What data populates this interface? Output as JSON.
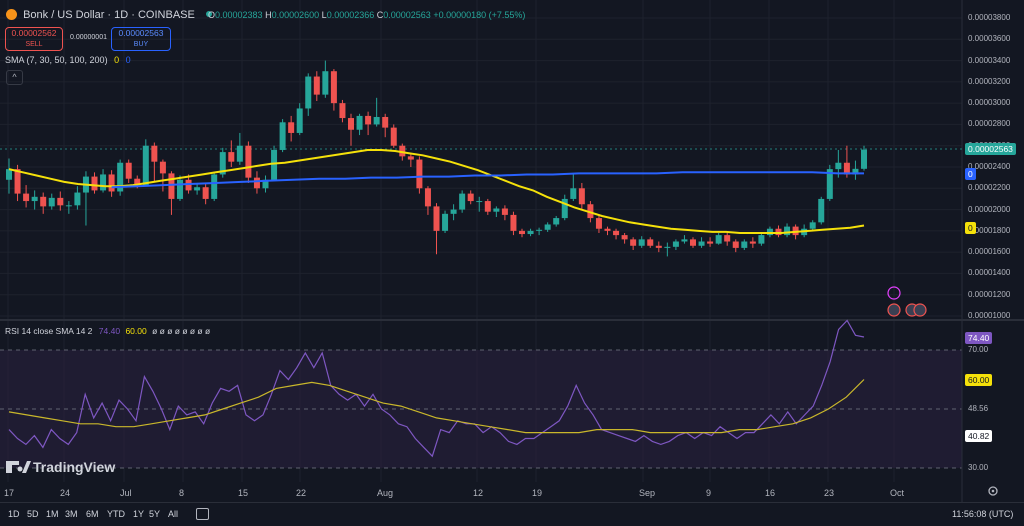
{
  "header": {
    "symbol_title": "Bonk / US Dollar · 1D · COINBASE",
    "ohlc": [
      {
        "k": "O",
        "v": "0.00002383"
      },
      {
        "k": "H",
        "v": "0.00002600"
      },
      {
        "k": "L",
        "v": "0.00002366"
      },
      {
        "k": "C",
        "v": "0.00002563"
      },
      {
        "k": "",
        "v": "+0.00000180 (+7.55%)"
      }
    ],
    "sell_price": "0.00002562",
    "sell_label": "SELL",
    "spread": "0.00000001",
    "buy_price": "0.00002563",
    "buy_label": "BUY",
    "sma_label": "SMA (7, 30, 50, 100, 200)",
    "sma_values": [
      "0",
      "0"
    ],
    "rsi_label": "RSI 14 close SMA 14 2",
    "rsi_value": "74.40",
    "rsi_sma_value": "60.00",
    "rsi_extra": "ø ø ø ø ø ø ø ø"
  },
  "price_axis": {
    "ticks": [
      "0.00003800",
      "0.00003600",
      "0.00003400",
      "0.00003200",
      "0.00003000",
      "0.00002800",
      "0.00002600",
      "0.00002400",
      "0.00002200",
      "0.00002000",
      "0.00001800",
      "0.00001600",
      "0.00001400",
      "0.00001200",
      "0.00001000"
    ],
    "last_price_tag": "0.00002563",
    "sma_tag_blue": "0",
    "sma_tag_yellow": "0"
  },
  "rsi_axis": {
    "ticks": [
      "70.00",
      "48.56",
      "30.00"
    ],
    "rsi_tag": "74.40",
    "rsi_sma_tag": "60.00",
    "level_tag": "40.82"
  },
  "time_axis": [
    "17",
    "24",
    "Jul",
    "8",
    "15",
    "22",
    "Aug",
    "12",
    "19",
    "Sep",
    "9",
    "16",
    "23",
    "Oct"
  ],
  "timeframes": [
    "1D",
    "5D",
    "1M",
    "3M",
    "6M",
    "YTD",
    "1Y",
    "5Y",
    "All"
  ],
  "clock": "11:56:08 (UTC)",
  "watermark": "TradingView",
  "colors": {
    "background": "#131722",
    "up": "#26a69a",
    "down": "#ef5350",
    "sma_yellow": "#f5e10a",
    "sma_blue": "#2962ff",
    "rsi_line": "#7e57c2",
    "rsi_sma": "#c9b72b",
    "rsi_band": "#2a2140"
  },
  "chart_data": {
    "type": "candlestick",
    "symbol": "Bonk / US Dollar",
    "interval": "1D",
    "x_range": [
      "Jun 17",
      "Oct 1"
    ],
    "ylim": [
      1e-05,
      3.8e-05
    ],
    "candles": [
      {
        "o": 2.28e-05,
        "c": 2.38e-05,
        "h": 2.48e-05,
        "l": 2.15e-05
      },
      {
        "o": 2.38e-05,
        "c": 2.15e-05,
        "h": 2.42e-05,
        "l": 2.08e-05
      },
      {
        "o": 2.15e-05,
        "c": 2.08e-05,
        "h": 2.23e-05,
        "l": 2.02e-05
      },
      {
        "o": 2.08e-05,
        "c": 2.12e-05,
        "h": 2.18e-05,
        "l": 2e-05
      },
      {
        "o": 2.12e-05,
        "c": 2.03e-05,
        "h": 2.16e-05,
        "l": 1.96e-05
      },
      {
        "o": 2.03e-05,
        "c": 2.11e-05,
        "h": 2.15e-05,
        "l": 2e-05
      },
      {
        "o": 2.11e-05,
        "c": 2.04e-05,
        "h": 2.17e-05,
        "l": 1.99e-05
      },
      {
        "o": 2.04e-05,
        "c": 2.04e-05,
        "h": 2.08e-05,
        "l": 1.96e-05
      },
      {
        "o": 2.04e-05,
        "c": 2.16e-05,
        "h": 2.22e-05,
        "l": 2e-05
      },
      {
        "o": 2.16e-05,
        "c": 2.31e-05,
        "h": 2.36e-05,
        "l": 1.85e-05
      },
      {
        "o": 2.31e-05,
        "c": 2.18e-05,
        "h": 2.35e-05,
        "l": 2.15e-05
      },
      {
        "o": 2.18e-05,
        "c": 2.33e-05,
        "h": 2.38e-05,
        "l": 2.16e-05
      },
      {
        "o": 2.33e-05,
        "c": 2.17e-05,
        "h": 2.37e-05,
        "l": 2.12e-05
      },
      {
        "o": 2.17e-05,
        "c": 2.44e-05,
        "h": 2.47e-05,
        "l": 2.13e-05
      },
      {
        "o": 2.44e-05,
        "c": 2.29e-05,
        "h": 2.47e-05,
        "l": 2.25e-05
      },
      {
        "o": 2.29e-05,
        "c": 2.23e-05,
        "h": 2.32e-05,
        "l": 2.2e-05
      },
      {
        "o": 2.23e-05,
        "c": 2.6e-05,
        "h": 2.66e-05,
        "l": 2.22e-05
      },
      {
        "o": 2.6e-05,
        "c": 2.45e-05,
        "h": 2.63e-05,
        "l": 2.26e-05
      },
      {
        "o": 2.45e-05,
        "c": 2.34e-05,
        "h": 2.47e-05,
        "l": 2.17e-05
      },
      {
        "o": 2.34e-05,
        "c": 2.1e-05,
        "h": 2.36e-05,
        "l": 1.95e-05
      },
      {
        "o": 2.1e-05,
        "c": 2.28e-05,
        "h": 2.32e-05,
        "l": 2.08e-05
      },
      {
        "o": 2.28e-05,
        "c": 2.18e-05,
        "h": 2.33e-05,
        "l": 2.15e-05
      },
      {
        "o": 2.18e-05,
        "c": 2.21e-05,
        "h": 2.25e-05,
        "l": 2.14e-05
      },
      {
        "o": 2.21e-05,
        "c": 2.1e-05,
        "h": 2.24e-05,
        "l": 2.05e-05
      },
      {
        "o": 2.1e-05,
        "c": 2.33e-05,
        "h": 2.35e-05,
        "l": 2.08e-05
      },
      {
        "o": 2.33e-05,
        "c": 2.54e-05,
        "h": 2.58e-05,
        "l": 2.3e-05
      },
      {
        "o": 2.54e-05,
        "c": 2.45e-05,
        "h": 2.65e-05,
        "l": 2.4e-05
      },
      {
        "o": 2.45e-05,
        "c": 2.6e-05,
        "h": 2.72e-05,
        "l": 2.42e-05
      },
      {
        "o": 2.6e-05,
        "c": 2.3e-05,
        "h": 2.64e-05,
        "l": 2.25e-05
      },
      {
        "o": 2.3e-05,
        "c": 2.2e-05,
        "h": 2.36e-05,
        "l": 2.15e-05
      },
      {
        "o": 2.2e-05,
        "c": 2.28e-05,
        "h": 2.32e-05,
        "l": 2.16e-05
      },
      {
        "o": 2.28e-05,
        "c": 2.56e-05,
        "h": 2.6e-05,
        "l": 2.27e-05
      },
      {
        "o": 2.56e-05,
        "c": 2.82e-05,
        "h": 2.85e-05,
        "l": 2.54e-05
      },
      {
        "o": 2.82e-05,
        "c": 2.72e-05,
        "h": 2.88e-05,
        "l": 2.64e-05
      },
      {
        "o": 2.72e-05,
        "c": 2.95e-05,
        "h": 3e-05,
        "l": 2.7e-05
      },
      {
        "o": 2.95e-05,
        "c": 3.25e-05,
        "h": 3.28e-05,
        "l": 2.88e-05
      },
      {
        "o": 3.25e-05,
        "c": 3.08e-05,
        "h": 3.3e-05,
        "l": 3.02e-05
      },
      {
        "o": 3.08e-05,
        "c": 3.3e-05,
        "h": 3.4e-05,
        "l": 3.05e-05
      },
      {
        "o": 3.3e-05,
        "c": 3e-05,
        "h": 3.32e-05,
        "l": 2.93e-05
      },
      {
        "o": 3e-05,
        "c": 2.86e-05,
        "h": 3.03e-05,
        "l": 2.82e-05
      },
      {
        "o": 2.86e-05,
        "c": 2.75e-05,
        "h": 2.9e-05,
        "l": 2.6e-05
      },
      {
        "o": 2.75e-05,
        "c": 2.88e-05,
        "h": 2.9e-05,
        "l": 2.7e-05
      },
      {
        "o": 2.88e-05,
        "c": 2.8e-05,
        "h": 2.92e-05,
        "l": 2.7e-05
      },
      {
        "o": 2.8e-05,
        "c": 2.87e-05,
        "h": 3.05e-05,
        "l": 2.78e-05
      },
      {
        "o": 2.87e-05,
        "c": 2.77e-05,
        "h": 2.9e-05,
        "l": 2.68e-05
      },
      {
        "o": 2.77e-05,
        "c": 2.6e-05,
        "h": 2.8e-05,
        "l": 2.58e-05
      },
      {
        "o": 2.6e-05,
        "c": 2.5e-05,
        "h": 2.62e-05,
        "l": 2.46e-05
      },
      {
        "o": 2.5e-05,
        "c": 2.47e-05,
        "h": 2.52e-05,
        "l": 2.4e-05
      },
      {
        "o": 2.47e-05,
        "c": 2.2e-05,
        "h": 2.5e-05,
        "l": 2.15e-05
      },
      {
        "o": 2.2e-05,
        "c": 2.03e-05,
        "h": 2.22e-05,
        "l": 1.95e-05
      },
      {
        "o": 2.03e-05,
        "c": 1.8e-05,
        "h": 2.06e-05,
        "l": 1.58e-05
      },
      {
        "o": 1.8e-05,
        "c": 1.96e-05,
        "h": 1.99e-05,
        "l": 1.78e-05
      },
      {
        "o": 1.96e-05,
        "c": 2e-05,
        "h": 2.05e-05,
        "l": 1.9e-05
      },
      {
        "o": 2e-05,
        "c": 2.15e-05,
        "h": 2.18e-05,
        "l": 1.97e-05
      },
      {
        "o": 2.15e-05,
        "c": 2.08e-05,
        "h": 2.18e-05,
        "l": 2.05e-05
      },
      {
        "o": 2.08e-05,
        "c": 2.08e-05,
        "h": 2.12e-05,
        "l": 1.98e-05
      },
      {
        "o": 2.08e-05,
        "c": 1.98e-05,
        "h": 2.1e-05,
        "l": 1.95e-05
      },
      {
        "o": 1.98e-05,
        "c": 2.01e-05,
        "h": 2.03e-05,
        "l": 1.93e-05
      },
      {
        "o": 2.01e-05,
        "c": 1.95e-05,
        "h": 2.04e-05,
        "l": 1.9e-05
      },
      {
        "o": 1.95e-05,
        "c": 1.8e-05,
        "h": 1.98e-05,
        "l": 1.76e-05
      },
      {
        "o": 1.8e-05,
        "c": 1.77e-05,
        "h": 1.82e-05,
        "l": 1.74e-05
      },
      {
        "o": 1.77e-05,
        "c": 1.8e-05,
        "h": 1.82e-05,
        "l": 1.75e-05
      },
      {
        "o": 1.8e-05,
        "c": 1.81e-05,
        "h": 1.83e-05,
        "l": 1.76e-05
      },
      {
        "o": 1.81e-05,
        "c": 1.86e-05,
        "h": 1.88e-05,
        "l": 1.79e-05
      },
      {
        "o": 1.86e-05,
        "c": 1.92e-05,
        "h": 1.94e-05,
        "l": 1.84e-05
      },
      {
        "o": 1.92e-05,
        "c": 2.1e-05,
        "h": 2.14e-05,
        "l": 1.9e-05
      },
      {
        "o": 2.1e-05,
        "c": 2.2e-05,
        "h": 2.34e-05,
        "l": 2.08e-05
      },
      {
        "o": 2.2e-05,
        "c": 2.05e-05,
        "h": 2.25e-05,
        "l": 2e-05
      },
      {
        "o": 2.05e-05,
        "c": 1.92e-05,
        "h": 2.08e-05,
        "l": 1.88e-05
      },
      {
        "o": 1.92e-05,
        "c": 1.82e-05,
        "h": 1.95e-05,
        "l": 1.78e-05
      },
      {
        "o": 1.82e-05,
        "c": 1.8e-05,
        "h": 1.84e-05,
        "l": 1.76e-05
      },
      {
        "o": 1.8e-05,
        "c": 1.76e-05,
        "h": 1.82e-05,
        "l": 1.72e-05
      },
      {
        "o": 1.76e-05,
        "c": 1.72e-05,
        "h": 1.78e-05,
        "l": 1.68e-05
      },
      {
        "o": 1.72e-05,
        "c": 1.66e-05,
        "h": 1.74e-05,
        "l": 1.62e-05
      },
      {
        "o": 1.66e-05,
        "c": 1.72e-05,
        "h": 1.75e-05,
        "l": 1.64e-05
      },
      {
        "o": 1.72e-05,
        "c": 1.66e-05,
        "h": 1.74e-05,
        "l": 1.64e-05
      },
      {
        "o": 1.66e-05,
        "c": 1.64e-05,
        "h": 1.7e-05,
        "l": 1.6e-05
      },
      {
        "o": 1.64e-05,
        "c": 1.65e-05,
        "h": 1.69e-05,
        "l": 1.56e-05
      },
      {
        "o": 1.65e-05,
        "c": 1.7e-05,
        "h": 1.72e-05,
        "l": 1.62e-05
      },
      {
        "o": 1.7e-05,
        "c": 1.72e-05,
        "h": 1.76e-05,
        "l": 1.68e-05
      },
      {
        "o": 1.72e-05,
        "c": 1.66e-05,
        "h": 1.74e-05,
        "l": 1.64e-05
      },
      {
        "o": 1.66e-05,
        "c": 1.7e-05,
        "h": 1.74e-05,
        "l": 1.64e-05
      },
      {
        "o": 1.7e-05,
        "c": 1.68e-05,
        "h": 1.74e-05,
        "l": 1.65e-05
      },
      {
        "o": 1.68e-05,
        "c": 1.76e-05,
        "h": 1.78e-05,
        "l": 1.67e-05
      },
      {
        "o": 1.76e-05,
        "c": 1.7e-05,
        "h": 1.78e-05,
        "l": 1.66e-05
      },
      {
        "o": 1.7e-05,
        "c": 1.64e-05,
        "h": 1.72e-05,
        "l": 1.6e-05
      },
      {
        "o": 1.64e-05,
        "c": 1.7e-05,
        "h": 1.72e-05,
        "l": 1.62e-05
      },
      {
        "o": 1.7e-05,
        "c": 1.68e-05,
        "h": 1.74e-05,
        "l": 1.64e-05
      },
      {
        "o": 1.68e-05,
        "c": 1.76e-05,
        "h": 1.78e-05,
        "l": 1.66e-05
      },
      {
        "o": 1.76e-05,
        "c": 1.82e-05,
        "h": 1.84e-05,
        "l": 1.74e-05
      },
      {
        "o": 1.82e-05,
        "c": 1.76e-05,
        "h": 1.85e-05,
        "l": 1.74e-05
      },
      {
        "o": 1.76e-05,
        "c": 1.84e-05,
        "h": 1.87e-05,
        "l": 1.74e-05
      },
      {
        "o": 1.84e-05,
        "c": 1.76e-05,
        "h": 1.86e-05,
        "l": 1.72e-05
      },
      {
        "o": 1.76e-05,
        "c": 1.82e-05,
        "h": 1.86e-05,
        "l": 1.74e-05
      },
      {
        "o": 1.82e-05,
        "c": 1.88e-05,
        "h": 1.9e-05,
        "l": 1.8e-05
      },
      {
        "o": 1.88e-05,
        "c": 2.1e-05,
        "h": 2.12e-05,
        "l": 1.86e-05
      },
      {
        "o": 2.1e-05,
        "c": 2.38e-05,
        "h": 2.42e-05,
        "l": 2.08e-05
      },
      {
        "o": 2.38e-05,
        "c": 2.44e-05,
        "h": 2.56e-05,
        "l": 2.3e-05
      },
      {
        "o": 2.44e-05,
        "c": 2.33e-05,
        "h": 2.6e-05,
        "l": 2.3e-05
      },
      {
        "o": 2.33e-05,
        "c": 2.383e-05,
        "h": 2.46e-05,
        "l": 2.28e-05
      },
      {
        "o": 2.383e-05,
        "c": 2.563e-05,
        "h": 2.6e-05,
        "l": 2.366e-05
      }
    ],
    "sma_yellow": [
      2.38e-05,
      2.35e-05,
      2.32e-05,
      2.29e-05,
      2.26e-05,
      2.24e-05,
      2.23e-05,
      2.22e-05,
      2.22e-05,
      2.23e-05,
      2.25e-05,
      2.27e-05,
      2.29e-05,
      2.31e-05,
      2.33e-05,
      2.35e-05,
      2.37e-05,
      2.39e-05,
      2.41e-05,
      2.43e-05,
      2.44e-05,
      2.46e-05,
      2.48e-05,
      2.5e-05,
      2.52e-05,
      2.54e-05,
      2.56e-05,
      2.56e-05,
      2.55e-05,
      2.53e-05,
      2.51e-05,
      2.48e-05,
      2.45e-05,
      2.41e-05,
      2.37e-05,
      2.32e-05,
      2.27e-05,
      2.22e-05,
      2.18e-05,
      2.12e-05,
      2.07e-05,
      2.02e-05,
      1.98e-05,
      1.94e-05,
      1.91e-05,
      1.88e-05,
      1.86e-05,
      1.84e-05,
      1.82e-05,
      1.81e-05,
      1.8e-05,
      1.79e-05,
      1.79e-05,
      1.78e-05,
      1.78e-05,
      1.78e-05,
      1.78e-05,
      1.79e-05,
      1.8e-05,
      1.81e-05,
      1.82e-05,
      1.83e-05,
      1.85e-05
    ],
    "sma_yellow_start_index": 0,
    "sma_blue_start_index": 18,
    "sma_blue": [
      2.21e-05,
      2.22e-05,
      2.23e-05,
      2.24e-05,
      2.25e-05,
      2.26e-05,
      2.27e-05,
      2.28e-05,
      2.29e-05,
      2.29e-05,
      2.3e-05,
      2.3e-05,
      2.31e-05,
      2.31e-05,
      2.32e-05,
      2.32e-05,
      2.33e-05,
      2.33e-05,
      2.34e-05,
      2.34e-05,
      2.34e-05,
      2.34e-05,
      2.35e-05,
      2.35e-05,
      2.35e-05,
      2.35e-05,
      2.35e-05,
      2.35e-05,
      2.34e-05,
      2.34e-05
    ],
    "rsi": [
      43,
      40,
      38,
      41,
      37,
      43,
      40,
      38,
      42,
      55,
      47,
      52,
      46,
      53,
      50,
      46,
      61,
      56,
      50,
      43,
      51,
      48,
      49,
      45,
      52,
      57,
      56,
      58,
      48,
      46,
      48,
      55,
      63,
      60,
      64,
      69,
      64,
      69,
      58,
      55,
      53,
      55,
      51,
      55,
      50,
      48,
      45,
      44,
      40,
      37,
      34,
      43,
      42,
      46,
      45,
      45,
      42,
      44,
      42,
      39,
      38,
      40,
      40,
      42,
      44,
      46,
      51,
      58,
      52,
      48,
      43,
      42,
      41,
      40,
      39,
      41,
      39,
      38,
      39,
      41,
      42,
      40,
      42,
      41,
      44,
      42,
      40,
      42,
      42,
      45,
      48,
      45,
      49,
      45,
      48,
      51,
      58,
      66,
      77,
      80,
      75,
      74.4
    ],
    "rsi_sma": [
      49,
      48,
      47,
      46,
      45,
      45,
      44,
      44,
      45,
      46,
      47,
      48,
      50,
      52,
      54,
      57,
      58,
      59,
      58,
      56,
      54,
      52,
      51,
      49,
      47,
      46,
      45,
      44,
      43,
      42,
      42,
      42,
      42,
      43,
      43,
      43,
      42,
      42,
      42,
      42,
      42,
      43,
      43,
      44,
      45,
      47,
      50,
      54,
      60
    ],
    "rsi_sma_start_index": 55
  }
}
